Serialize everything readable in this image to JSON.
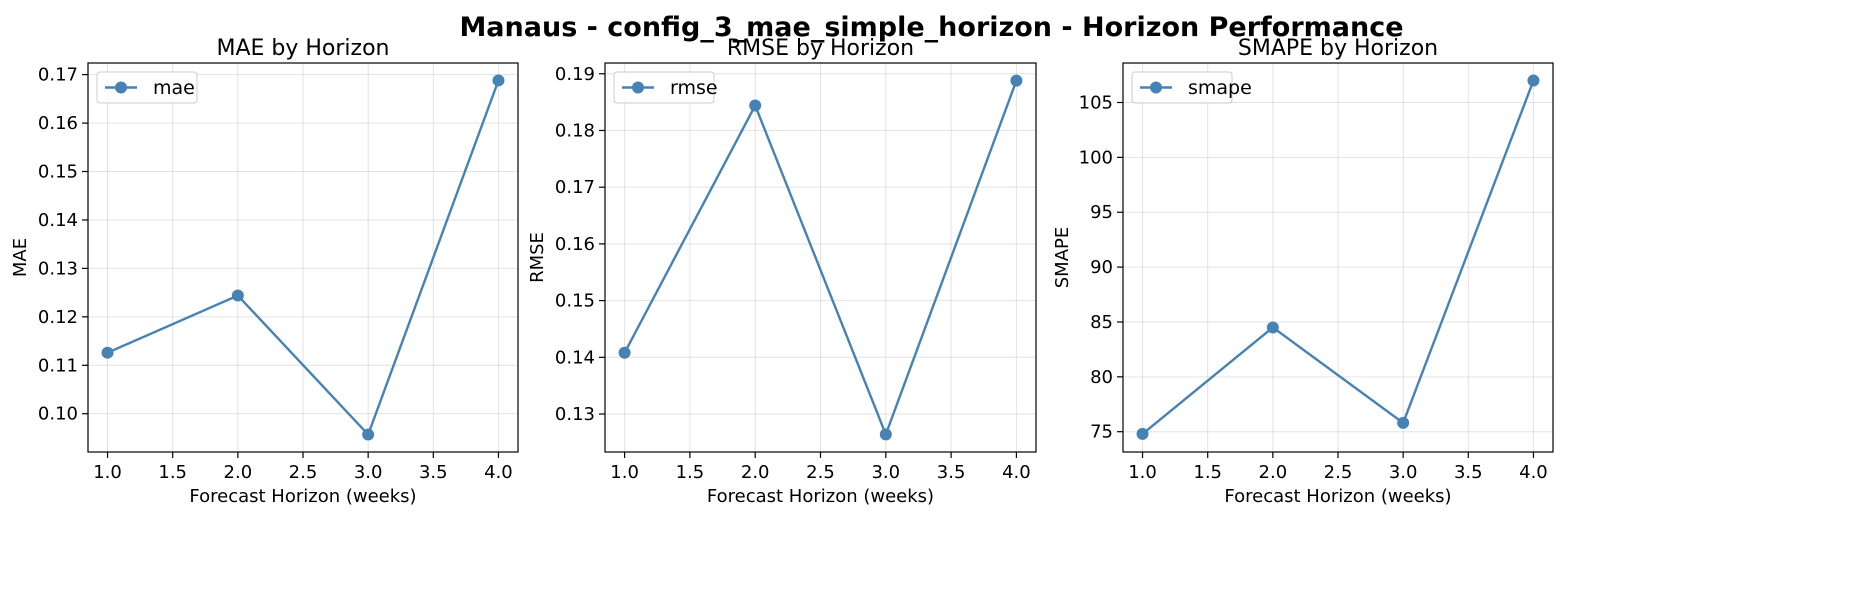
{
  "figure": {
    "title": "Manaus - config_3_mae_simple_horizon - Horizon Performance"
  },
  "chart_data": [
    {
      "type": "line",
      "title": "MAE by Horizon",
      "xlabel": "Forecast Horizon (weeks)",
      "ylabel": "MAE",
      "xlim": [
        0.85,
        4.15
      ],
      "ylim": [
        0.0921,
        0.1724
      ],
      "xticks": [
        "1.0",
        "1.5",
        "2.0",
        "2.5",
        "3.0",
        "3.5",
        "4.0"
      ],
      "yticks": [
        "0.10",
        "0.11",
        "0.12",
        "0.13",
        "0.14",
        "0.15",
        "0.16",
        "0.17"
      ],
      "grid": true,
      "legend_position": "top-left",
      "color": "#4682b4",
      "series": [
        {
          "name": "mae",
          "x": [
            1.0,
            2.0,
            3.0,
            4.0
          ],
          "y": [
            0.1126,
            0.1244,
            0.0957,
            0.1688
          ]
        }
      ]
    },
    {
      "type": "line",
      "title": "RMSE by Horizon",
      "xlabel": "Forecast Horizon (weeks)",
      "ylabel": "RMSE",
      "xlim": [
        0.85,
        4.15
      ],
      "ylim": [
        0.1233,
        0.1919
      ],
      "xticks": [
        "1.0",
        "1.5",
        "2.0",
        "2.5",
        "3.0",
        "3.5",
        "4.0"
      ],
      "yticks": [
        "0.13",
        "0.14",
        "0.15",
        "0.16",
        "0.17",
        "0.18",
        "0.19"
      ],
      "grid": true,
      "legend_position": "top-left",
      "color": "#4682b4",
      "series": [
        {
          "name": "rmse",
          "x": [
            1.0,
            2.0,
            3.0,
            4.0
          ],
          "y": [
            0.1408,
            0.1844,
            0.1264,
            0.1888
          ]
        }
      ]
    },
    {
      "type": "line",
      "title": "SMAPE by Horizon",
      "xlabel": "Forecast Horizon (weeks)",
      "ylabel": "SMAPE",
      "xlim": [
        0.85,
        4.15
      ],
      "ylim": [
        73.15,
        108.6
      ],
      "xticks": [
        "1.0",
        "1.5",
        "2.0",
        "2.5",
        "3.0",
        "3.5",
        "4.0"
      ],
      "yticks": [
        "75",
        "80",
        "85",
        "90",
        "95",
        "100",
        "105"
      ],
      "grid": true,
      "legend_position": "top-left",
      "color": "#4682b4",
      "series": [
        {
          "name": "smape",
          "x": [
            1.0,
            2.0,
            3.0,
            4.0
          ],
          "y": [
            74.8,
            84.5,
            75.8,
            107.0
          ]
        }
      ]
    }
  ]
}
